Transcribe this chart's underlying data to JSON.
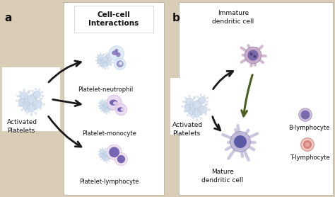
{
  "bg_color": "#d9cdb8",
  "white_box_color": "#ffffff",
  "fig_width": 4.74,
  "fig_height": 2.78,
  "dpi": 100,
  "label_a": "a",
  "label_b": "b",
  "panel_a_title": "Cell-cell\nInteractions",
  "label_platelet_neutrophil": "Platelet-neutrophil",
  "label_platelet_monocyte": "Platelet-monocyte",
  "label_platelet_lymphocyte": "Platelet-lymphocyte",
  "label_activated_a": "Activated\nPlatelets",
  "label_immature": "Immature\ndendritic cell",
  "label_activated_b": "Activated\nPlatelets",
  "label_mature": "Mature\ndendritic cell",
  "label_b_lymphocyte": "B-lymphocyte",
  "label_t_lymphocyte": "T-lymphocyte",
  "platelet_body_color": "#c8d8ec",
  "platelet_edge_color": "#a0b8cc",
  "neutrophil_body": "#dce8f5",
  "neutrophil_nucleus": "#8070b8",
  "monocyte_body": "#dce8f5",
  "monocyte_nucleus": "#6050a8",
  "lymphocyte_body": "#e8d8f0",
  "lymphocyte_nucleus": "#6050a8",
  "dendritic_immature_body": "#c8a8c8",
  "dendritic_immature_nucleus": "#7060a8",
  "dendritic_mature_body": "#c0b8d8",
  "dendritic_mature_nucleus": "#5050a0",
  "b_lymph_body": "#c0b0d8",
  "b_lymph_nucleus": "#7060a8",
  "t_lymph_body": "#f0c0c0",
  "t_lymph_edge": "#c88080",
  "t_lymph_nucleus": "#c06060",
  "arrow_color": "#1a1a1a",
  "green_arrow_color": "#4a6020"
}
